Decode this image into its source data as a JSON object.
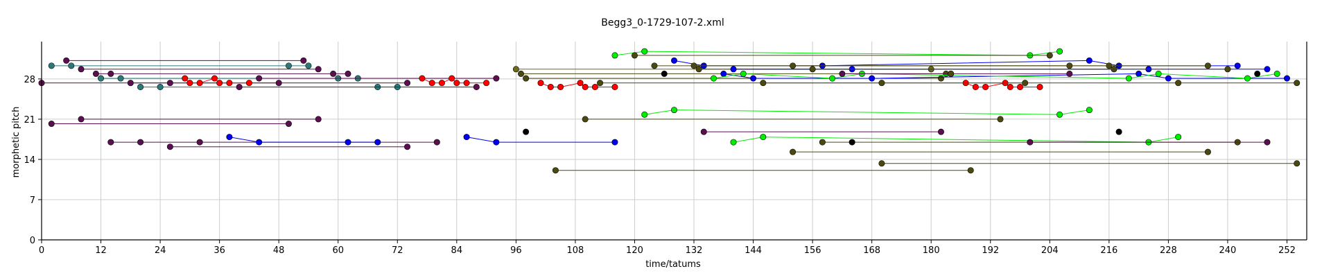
{
  "chart_data": {
    "type": "scatter",
    "title": "Begg3_0-1729-107-2.xml",
    "xlabel": "time/tatums",
    "ylabel": "morphetic pitch",
    "xlim": [
      0,
      256
    ],
    "ylim": [
      0,
      34.5
    ],
    "x_ticks": [
      0,
      12,
      24,
      36,
      48,
      60,
      72,
      84,
      96,
      108,
      120,
      132,
      144,
      156,
      168,
      180,
      192,
      204,
      216,
      228,
      240,
      252
    ],
    "y_ticks": [
      0,
      7,
      14,
      21,
      28
    ],
    "grid": true,
    "legend": "none",
    "series": [
      {
        "color": "#2b7a7a",
        "points": [
          [
            2,
            30.3
          ],
          [
            6,
            30.3
          ],
          [
            50,
            30.3
          ],
          [
            54,
            30.3
          ]
        ]
      },
      {
        "color": "#5a0f4f",
        "points": [
          [
            5,
            31.2
          ],
          [
            53,
            31.2
          ]
        ]
      },
      {
        "color": "#5a0f4f",
        "points": [
          [
            8,
            29.7
          ],
          [
            56,
            29.7
          ]
        ]
      },
      {
        "color": "#5a0f4f",
        "points": [
          [
            11,
            28.9
          ],
          [
            14,
            28.9
          ],
          [
            59,
            28.9
          ],
          [
            62,
            28.9
          ]
        ]
      },
      {
        "color": "#2b7a7a",
        "points": [
          [
            12,
            28.1
          ],
          [
            16,
            28.1
          ],
          [
            60,
            28.1
          ],
          [
            64,
            28.1
          ]
        ]
      },
      {
        "color": "#5a0f4f",
        "points": [
          [
            18,
            27.3
          ],
          [
            26,
            27.3
          ],
          [
            48,
            27.3
          ]
        ]
      },
      {
        "color": "#2b7a7a",
        "points": [
          [
            20,
            26.6
          ],
          [
            24,
            26.6
          ],
          [
            68,
            26.6
          ],
          [
            72,
            26.6
          ]
        ]
      },
      {
        "color": "#5a0f4f",
        "points": [
          [
            0,
            27.3
          ],
          [
            74,
            27.3
          ]
        ]
      },
      {
        "color": "#5a0f4f",
        "points": [
          [
            40,
            26.6
          ],
          [
            88,
            26.6
          ]
        ]
      },
      {
        "color": "#5a0f4f",
        "points": [
          [
            44,
            28.1
          ],
          [
            92,
            28.1
          ]
        ]
      },
      {
        "color": "#ff0000",
        "points": [
          [
            29,
            28.1
          ],
          [
            30,
            27.3
          ],
          [
            32,
            27.3
          ],
          [
            35,
            28.1
          ],
          [
            36,
            27.3
          ],
          [
            38,
            27.3
          ],
          [
            42,
            27.3
          ]
        ]
      },
      {
        "color": "#ff0000",
        "points": [
          [
            77,
            28.1
          ],
          [
            79,
            27.3
          ],
          [
            81,
            27.3
          ],
          [
            83,
            28.1
          ],
          [
            84,
            27.3
          ],
          [
            86,
            27.3
          ],
          [
            90,
            27.3
          ]
        ]
      },
      {
        "color": "#5a0f4f",
        "points": [
          [
            8,
            21
          ],
          [
            56,
            21
          ]
        ]
      },
      {
        "color": "#5a0f4f",
        "points": [
          [
            2,
            20.2
          ],
          [
            50,
            20.2
          ]
        ]
      },
      {
        "color": "#5a0f4f",
        "points": [
          [
            14,
            17
          ],
          [
            20,
            17
          ],
          [
            32,
            17
          ],
          [
            80,
            17
          ]
        ]
      },
      {
        "color": "#5a0f4f",
        "points": [
          [
            26,
            16.2
          ],
          [
            74,
            16.2
          ]
        ]
      },
      {
        "color": "#0000ee",
        "points": [
          [
            38,
            17.9
          ],
          [
            44,
            17
          ],
          [
            62,
            17
          ],
          [
            68,
            17
          ]
        ]
      },
      {
        "color": "#0000ee",
        "points": [
          [
            86,
            17.9
          ],
          [
            92,
            17
          ],
          [
            116,
            17
          ]
        ]
      },
      {
        "color": "#000000",
        "points": [
          [
            98,
            18.8
          ]
        ]
      },
      {
        "color": "#6b6b1a",
        "points": [
          [
            96,
            29.7
          ],
          [
            180,
            29.7
          ]
        ]
      },
      {
        "color": "#4a4a10",
        "points": [
          [
            97,
            28.9
          ],
          [
            183,
            28.9
          ]
        ]
      },
      {
        "color": "#4a4a10",
        "points": [
          [
            98,
            28.1
          ],
          [
            182,
            28.1
          ]
        ]
      },
      {
        "color": "#ff0000",
        "points": [
          [
            101,
            27.3
          ],
          [
            103,
            26.6
          ],
          [
            105,
            26.6
          ],
          [
            109,
            27.3
          ],
          [
            110,
            26.6
          ],
          [
            112,
            26.6
          ],
          [
            116,
            26.6
          ]
        ]
      },
      {
        "color": "#ff0000",
        "points": [
          [
            187,
            27.3
          ],
          [
            189,
            26.6
          ],
          [
            191,
            26.6
          ],
          [
            195,
            27.3
          ],
          [
            196,
            26.6
          ],
          [
            198,
            26.6
          ],
          [
            202,
            26.6
          ]
        ]
      },
      {
        "color": "#4a4a10",
        "points": [
          [
            113,
            27.3
          ],
          [
            199,
            27.3
          ]
        ]
      },
      {
        "color": "#00ee00",
        "points": [
          [
            116,
            32.1
          ],
          [
            122,
            32.8
          ],
          [
            200,
            32.1
          ],
          [
            206,
            32.8
          ]
        ]
      },
      {
        "color": "#4a4a10",
        "points": [
          [
            120,
            32.1
          ],
          [
            204,
            32.1
          ]
        ]
      },
      {
        "color": "#4a4a10",
        "points": [
          [
            124,
            30.3
          ],
          [
            208,
            30.3
          ]
        ]
      },
      {
        "color": "#0000ee",
        "points": [
          [
            128,
            31.2
          ],
          [
            134,
            30.3
          ],
          [
            158,
            30.3
          ],
          [
            212,
            31.2
          ],
          [
            218,
            30.3
          ],
          [
            242,
            30.3
          ]
        ]
      },
      {
        "color": "#4a4a10",
        "points": [
          [
            132,
            30.3
          ],
          [
            216,
            30.3
          ]
        ]
      },
      {
        "color": "#4a4a10",
        "points": [
          [
            133,
            29.7
          ],
          [
            217,
            29.7
          ]
        ]
      },
      {
        "color": "#0000ee",
        "points": [
          [
            140,
            29.7
          ],
          [
            164,
            29.7
          ],
          [
            224,
            29.7
          ],
          [
            248,
            29.7
          ]
        ]
      },
      {
        "color": "#000000",
        "points": [
          [
            126,
            28.9
          ]
        ]
      },
      {
        "color": "#0000ee",
        "points": [
          [
            138,
            28.9
          ],
          [
            144,
            28.1
          ],
          [
            168,
            28.1
          ],
          [
            222,
            28.9
          ],
          [
            228,
            28.1
          ],
          [
            252,
            28.1
          ]
        ]
      },
      {
        "color": "#00ee00",
        "points": [
          [
            136,
            28.1
          ],
          [
            142,
            28.9
          ],
          [
            160,
            28.1
          ],
          [
            166,
            28.9
          ],
          [
            220,
            28.1
          ],
          [
            226,
            28.9
          ],
          [
            244,
            28.1
          ],
          [
            250,
            28.9
          ]
        ]
      },
      {
        "color": "#4a4a10",
        "points": [
          [
            146,
            27.3
          ],
          [
            170,
            27.3
          ],
          [
            230,
            27.3
          ],
          [
            254,
            27.3
          ]
        ]
      },
      {
        "color": "#4a4a10",
        "points": [
          [
            152,
            30.3
          ],
          [
            236,
            30.3
          ]
        ]
      },
      {
        "color": "#5a0f4f",
        "points": [
          [
            162,
            28.9
          ],
          [
            208,
            28.9
          ]
        ]
      },
      {
        "color": "#4a4a10",
        "points": [
          [
            156,
            29.7
          ],
          [
            240,
            29.7
          ]
        ]
      },
      {
        "color": "#4a4a10",
        "points": [
          [
            184,
            28.9
          ],
          [
            184,
            28.9
          ]
        ]
      },
      {
        "color": "#000000",
        "points": [
          [
            246,
            28.9
          ]
        ]
      },
      {
        "color": "#00ee00",
        "points": [
          [
            122,
            21.8
          ],
          [
            128,
            22.6
          ],
          [
            206,
            21.8
          ],
          [
            212,
            22.6
          ]
        ]
      },
      {
        "color": "#4a4a10",
        "points": [
          [
            110,
            21
          ],
          [
            194,
            21
          ]
        ]
      },
      {
        "color": "#5a0f4f",
        "points": [
          [
            134,
            18.8
          ],
          [
            182,
            18.8
          ]
        ]
      },
      {
        "color": "#000000",
        "points": [
          [
            218,
            18.8
          ]
        ]
      },
      {
        "color": "#00ee00",
        "points": [
          [
            140,
            17
          ],
          [
            146,
            17.9
          ],
          [
            224,
            17
          ],
          [
            230,
            17.9
          ]
        ]
      },
      {
        "color": "#4a4a10",
        "points": [
          [
            158,
            17
          ],
          [
            242,
            17
          ]
        ]
      },
      {
        "color": "#000000",
        "points": [
          [
            164,
            17
          ]
        ]
      },
      {
        "color": "#5a0f4f",
        "points": [
          [
            200,
            17
          ],
          [
            248,
            17
          ]
        ]
      },
      {
        "color": "#4a4a10",
        "points": [
          [
            152,
            15.3
          ],
          [
            236,
            15.3
          ]
        ]
      },
      {
        "color": "#4a4a10",
        "points": [
          [
            170,
            13.3
          ],
          [
            254,
            13.3
          ]
        ]
      },
      {
        "color": "#4a4a10",
        "points": [
          [
            104,
            12.1
          ],
          [
            188,
            12.1
          ]
        ]
      }
    ]
  }
}
